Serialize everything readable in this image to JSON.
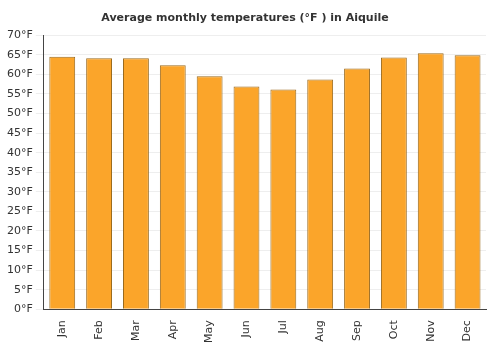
{
  "chart_data": {
    "type": "bar",
    "title": "Average monthly temperatures (°F ) in Aiquile",
    "categories": [
      "Jan",
      "Feb",
      "Mar",
      "Apr",
      "May",
      "Jun",
      "Jul",
      "Aug",
      "Sep",
      "Oct",
      "Nov",
      "Dec"
    ],
    "values": [
      64.5,
      64.1,
      64.1,
      62.3,
      59.5,
      56.9,
      56.1,
      58.7,
      61.5,
      64.3,
      65.4,
      64.9
    ],
    "color": "#fba52a",
    "ylim": [
      0,
      70
    ],
    "yticks": [
      {
        "value": 0,
        "label": "0°F"
      },
      {
        "value": 5,
        "label": "5°F"
      },
      {
        "value": 10,
        "label": "10°F"
      },
      {
        "value": 15,
        "label": "15°F"
      },
      {
        "value": 20,
        "label": "20°F"
      },
      {
        "value": 25,
        "label": "25°F"
      },
      {
        "value": 30,
        "label": "30°F"
      },
      {
        "value": 35,
        "label": "35°F"
      },
      {
        "value": 40,
        "label": "40°F"
      },
      {
        "value": 45,
        "label": "45°F"
      },
      {
        "value": 50,
        "label": "50°F"
      },
      {
        "value": 55,
        "label": "55°F"
      },
      {
        "value": 60,
        "label": "60°F"
      },
      {
        "value": 65,
        "label": "65°F"
      },
      {
        "value": 70,
        "label": "70°F"
      }
    ],
    "grid": true
  }
}
